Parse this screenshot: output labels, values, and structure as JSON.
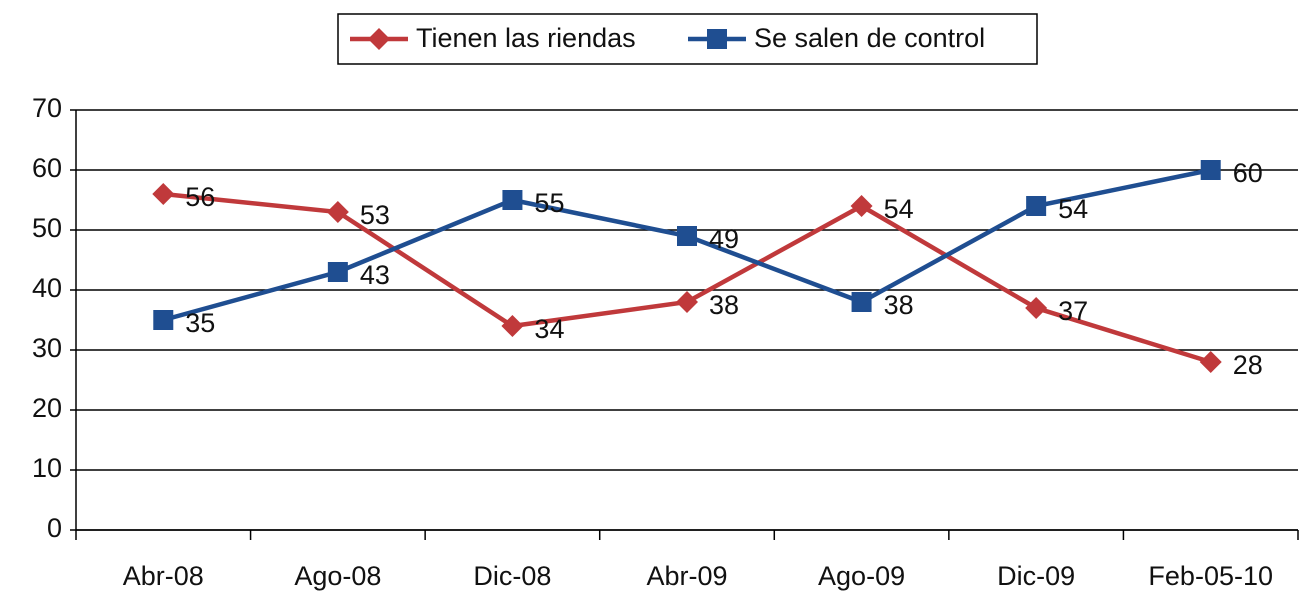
{
  "chart_data": {
    "type": "line",
    "categories": [
      "Abr-08",
      "Ago-08",
      "Dic-08",
      "Abr-09",
      "Ago-09",
      "Dic-09",
      "Feb-05-10"
    ],
    "series": [
      {
        "name": "Tienen las riendas",
        "color": "#c0393b",
        "marker": "diamond",
        "values": [
          56,
          53,
          34,
          38,
          54,
          37,
          28
        ]
      },
      {
        "name": "Se salen de control",
        "color": "#1f4e91",
        "marker": "square",
        "values": [
          35,
          43,
          55,
          49,
          38,
          54,
          60
        ]
      }
    ],
    "ylim": [
      0,
      70
    ],
    "yticks": [
      0,
      10,
      20,
      30,
      40,
      50,
      60,
      70
    ],
    "grid": true,
    "legend": "top"
  }
}
